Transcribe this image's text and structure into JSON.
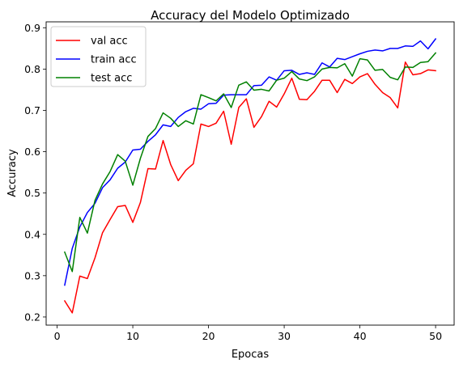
{
  "chart_data": {
    "type": "line",
    "title": "Accuracy del Modelo Optimizado",
    "xlabel": "Epocas",
    "ylabel": "Accuracy",
    "xlim": [
      -1.45,
      52.45
    ],
    "ylim": [
      0.1803,
      0.9143
    ],
    "xticks": [
      0,
      10,
      20,
      30,
      40,
      50
    ],
    "yticks": [
      0.2,
      0.3,
      0.4,
      0.5,
      0.6,
      0.7,
      0.8,
      0.9
    ],
    "xtick_labels": [
      "0",
      "10",
      "20",
      "30",
      "40",
      "50"
    ],
    "ytick_labels": [
      "0.2",
      "0.3",
      "0.4",
      "0.5",
      "0.6",
      "0.7",
      "0.8",
      "0.9"
    ],
    "grid": false,
    "legend_position": "upper-left",
    "x": [
      1,
      2,
      3,
      4,
      5,
      6,
      7,
      8,
      9,
      10,
      11,
      12,
      13,
      14,
      15,
      16,
      17,
      18,
      19,
      20,
      21,
      22,
      23,
      24,
      25,
      26,
      27,
      28,
      29,
      30,
      31,
      32,
      33,
      34,
      35,
      36,
      37,
      38,
      39,
      40,
      41,
      42,
      43,
      44,
      45,
      46,
      47,
      48,
      49,
      50
    ],
    "series": [
      {
        "name": "val acc",
        "color": "#ff0000",
        "values": [
          0.239,
          0.21,
          0.299,
          0.293,
          0.343,
          0.404,
          0.436,
          0.467,
          0.47,
          0.429,
          0.477,
          0.559,
          0.558,
          0.627,
          0.569,
          0.53,
          0.555,
          0.571,
          0.667,
          0.661,
          0.669,
          0.698,
          0.618,
          0.707,
          0.728,
          0.659,
          0.685,
          0.722,
          0.708,
          0.74,
          0.778,
          0.727,
          0.726,
          0.746,
          0.773,
          0.773,
          0.743,
          0.775,
          0.765,
          0.781,
          0.789,
          0.763,
          0.743,
          0.731,
          0.706,
          0.817,
          0.786,
          0.789,
          0.798,
          0.796
        ]
      },
      {
        "name": "train acc",
        "color": "#0000ff",
        "values": [
          0.277,
          0.366,
          0.418,
          0.453,
          0.475,
          0.513,
          0.532,
          0.56,
          0.575,
          0.604,
          0.606,
          0.625,
          0.641,
          0.665,
          0.661,
          0.683,
          0.697,
          0.705,
          0.703,
          0.716,
          0.717,
          0.737,
          0.738,
          0.738,
          0.738,
          0.76,
          0.761,
          0.781,
          0.773,
          0.796,
          0.797,
          0.787,
          0.791,
          0.787,
          0.815,
          0.805,
          0.826,
          0.823,
          0.83,
          0.837,
          0.843,
          0.846,
          0.844,
          0.85,
          0.85,
          0.856,
          0.855,
          0.868,
          0.849,
          0.873
        ]
      },
      {
        "name": "test acc",
        "color": "#008000",
        "values": [
          0.357,
          0.31,
          0.441,
          0.403,
          0.482,
          0.522,
          0.552,
          0.593,
          0.577,
          0.519,
          0.584,
          0.637,
          0.656,
          0.694,
          0.681,
          0.661,
          0.675,
          0.667,
          0.738,
          0.731,
          0.723,
          0.74,
          0.707,
          0.761,
          0.769,
          0.749,
          0.751,
          0.747,
          0.773,
          0.778,
          0.794,
          0.776,
          0.772,
          0.781,
          0.8,
          0.804,
          0.803,
          0.813,
          0.783,
          0.825,
          0.822,
          0.797,
          0.799,
          0.78,
          0.774,
          0.805,
          0.804,
          0.816,
          0.818,
          0.839
        ]
      }
    ]
  }
}
